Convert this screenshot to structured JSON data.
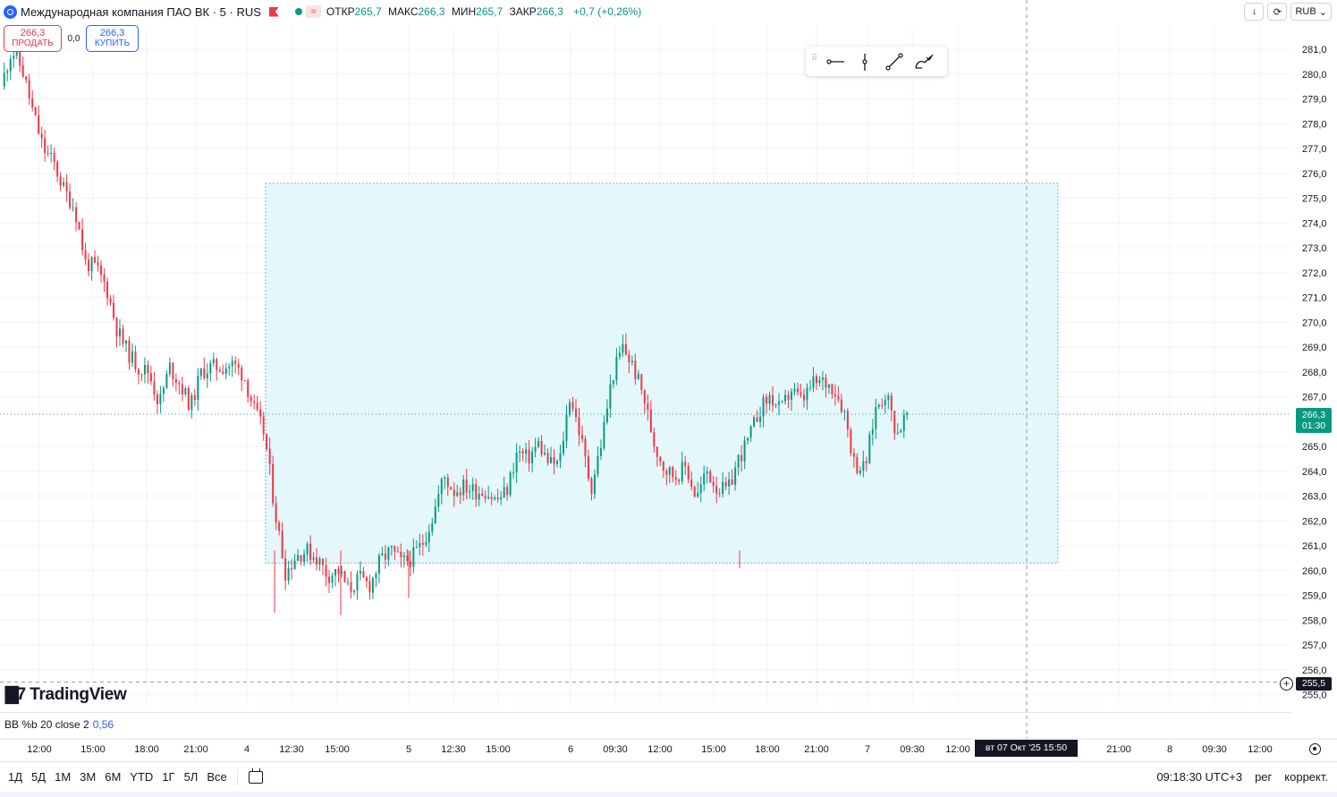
{
  "header": {
    "title": "Международная компания ПАО ВК · 5 · RUS",
    "ohlc": [
      {
        "key": "ОТКР",
        "value": "265,7"
      },
      {
        "key": "МАКС",
        "value": "266,3"
      },
      {
        "key": "МИН",
        "value": "265,7"
      },
      {
        "key": "ЗАКР",
        "value": "266,3"
      }
    ],
    "change": "+0,7 (+0,26%)"
  },
  "trade": {
    "sell_price": "266,3",
    "sell_label": "ПРОДАТЬ",
    "spread": "0,0",
    "buy_price": "266,3",
    "buy_label": "КУПИТЬ"
  },
  "top_right": {
    "currency": "RUB"
  },
  "price_axis": {
    "ticks": [
      "281,0",
      "280,0",
      "279,0",
      "278,0",
      "277,0",
      "276,0",
      "275,0",
      "274,0",
      "273,0",
      "272,0",
      "271,0",
      "270,0",
      "269,0",
      "268,0",
      "267,0",
      "265,0",
      "264,0",
      "263,0",
      "262,0",
      "261,0",
      "260,0",
      "259,0",
      "258,0",
      "257,0",
      "256,0",
      "255,0"
    ],
    "current_price": "266,3",
    "countdown": "01:30",
    "crosshair_price": "255,5"
  },
  "time_axis": {
    "ticks": [
      "12:00",
      "15:00",
      "18:00",
      "21:00",
      "4",
      "12:30",
      "15:00",
      "5",
      "12:30",
      "15:00",
      "6",
      "09:30",
      "12:00",
      "15:00",
      "18:00",
      "21:00",
      "7",
      "09:30",
      "12:00",
      "21:00",
      "8",
      "09:30",
      "12:00"
    ],
    "crosshair_time": "вт 07 Окт '25   15:50"
  },
  "indicator": {
    "label": "BB %b 20 close 2",
    "value": "0,56"
  },
  "brand": "TradingView",
  "bottom": {
    "ranges": [
      "1Д",
      "5Д",
      "1М",
      "3М",
      "6М",
      "YTD",
      "1Г",
      "5Л",
      "Все"
    ],
    "clock": "09:18:30 UTC+3",
    "session": "рег",
    "adjust": "коррект."
  },
  "colors": {
    "up": "#089981",
    "down": "#f23645",
    "zone": "#e4f7fb",
    "accent": "#2962ff"
  },
  "chart_data": {
    "type": "candlestick",
    "ylim": [
      255,
      282
    ],
    "current": 266.3,
    "zone": {
      "from": 260.3,
      "to": 275.6
    },
    "path": [
      [
        0,
        279.5
      ],
      [
        1,
        281.0
      ],
      [
        2,
        280.2
      ],
      [
        3,
        278.5
      ],
      [
        4,
        277.0
      ],
      [
        5,
        276.4
      ],
      [
        6,
        275.3
      ],
      [
        7,
        274.6
      ],
      [
        8,
        272.4
      ],
      [
        9,
        272.2
      ],
      [
        10,
        271.4
      ],
      [
        11,
        269.7
      ],
      [
        12,
        268.8
      ],
      [
        13,
        268.2
      ],
      [
        14,
        268.0
      ],
      [
        15,
        266.7
      ],
      [
        16,
        268.2
      ],
      [
        17,
        267.5
      ],
      [
        18,
        266.6
      ],
      [
        19,
        268.0
      ],
      [
        20,
        268.2
      ],
      [
        21,
        268.2
      ],
      [
        22,
        268.3
      ],
      [
        23,
        267.9
      ],
      [
        24,
        266.5
      ],
      [
        25,
        265.5
      ],
      [
        26,
        262.4
      ],
      [
        27,
        259.9
      ],
      [
        28,
        260.6
      ],
      [
        29,
        260.8
      ],
      [
        30,
        260.5
      ],
      [
        31,
        259.8
      ],
      [
        32,
        260.0
      ],
      [
        33,
        259.2
      ],
      [
        34,
        259.7
      ],
      [
        35,
        259.4
      ],
      [
        36,
        260.4
      ],
      [
        37,
        260.8
      ],
      [
        38,
        260.3
      ],
      [
        39,
        260.5
      ],
      [
        40,
        261.1
      ],
      [
        41,
        262.2
      ],
      [
        42,
        263.8
      ],
      [
        43,
        263.2
      ],
      [
        44,
        263.4
      ],
      [
        45,
        263.2
      ],
      [
        46,
        263.2
      ],
      [
        47,
        262.8
      ],
      [
        48,
        263.2
      ],
      [
        49,
        264.8
      ],
      [
        50,
        264.5
      ],
      [
        51,
        265.1
      ],
      [
        52,
        264.3
      ],
      [
        53,
        264.3
      ],
      [
        54,
        267.1
      ],
      [
        55,
        265.4
      ],
      [
        56,
        263.3
      ],
      [
        57,
        265.2
      ],
      [
        58,
        267.8
      ],
      [
        59,
        269.0
      ],
      [
        60,
        268.2
      ],
      [
        61,
        267.0
      ],
      [
        62,
        265.1
      ],
      [
        63,
        264.1
      ],
      [
        64,
        263.8
      ],
      [
        65,
        264.2
      ],
      [
        66,
        262.9
      ],
      [
        67,
        264.0
      ],
      [
        68,
        263.3
      ],
      [
        69,
        263.2
      ],
      [
        70,
        264.5
      ],
      [
        71,
        265.3
      ],
      [
        72,
        266.5
      ],
      [
        73,
        267.0
      ],
      [
        74,
        266.4
      ],
      [
        75,
        267.3
      ],
      [
        76,
        266.8
      ],
      [
        77,
        267.5
      ],
      [
        78,
        267.6
      ],
      [
        79,
        267.4
      ],
      [
        80,
        266.5
      ],
      [
        81,
        264.3
      ],
      [
        82,
        264.1
      ],
      [
        83,
        266.5
      ],
      [
        84,
        267.2
      ],
      [
        85,
        265.5
      ],
      [
        86,
        266.3
      ]
    ]
  }
}
